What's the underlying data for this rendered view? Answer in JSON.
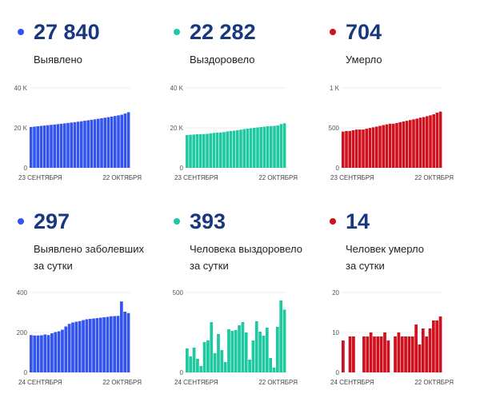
{
  "colors": {
    "cases": "#3355ee",
    "recovered": "#1ec8a0",
    "deaths": "#d0101c",
    "number": "#17387f"
  },
  "panels": [
    {
      "id": "cases-total",
      "value": "27 840",
      "label_lines": [
        "Выявлено"
      ],
      "color_key": "cases"
    },
    {
      "id": "recovered-total",
      "value": "22 282",
      "label_lines": [
        "Выздоровело"
      ],
      "color_key": "recovered"
    },
    {
      "id": "deaths-total",
      "value": "704",
      "label_lines": [
        "Умерло"
      ],
      "color_key": "deaths"
    },
    {
      "id": "cases-daily",
      "value": "297",
      "label_lines": [
        "Выявлено заболевших",
        "за сутки"
      ],
      "color_key": "cases"
    },
    {
      "id": "recovered-daily",
      "value": "393",
      "label_lines": [
        "Человека выздоровело",
        "за сутки"
      ],
      "color_key": "recovered"
    },
    {
      "id": "deaths-daily",
      "value": "14",
      "label_lines": [
        "Человек умерло",
        "за сутки"
      ],
      "color_key": "deaths"
    }
  ],
  "chart_data": [
    {
      "type": "bar",
      "title": "Выявлено",
      "x_start": "23 СЕНТЯБРЯ",
      "x_end": "22 ОКТЯБРЯ",
      "ylim": [
        0,
        40000
      ],
      "yticks": [
        0,
        20000,
        40000
      ],
      "ytick_labels": [
        "0",
        "20 K",
        "40 K"
      ],
      "grid": true,
      "values": [
        20450,
        20620,
        20800,
        20980,
        21160,
        21330,
        21520,
        21700,
        21880,
        22060,
        22260,
        22460,
        22660,
        22870,
        23090,
        23320,
        23560,
        23800,
        24040,
        24290,
        24550,
        24820,
        25090,
        25370,
        25660,
        25960,
        26270,
        26590,
        27160,
        27840
      ]
    },
    {
      "type": "bar",
      "title": "Выздоровело",
      "x_start": "23 СЕНТЯБРЯ",
      "x_end": "22 ОКТЯБРЯ",
      "ylim": [
        0,
        40000
      ],
      "yticks": [
        0,
        20000,
        40000
      ],
      "ytick_labels": [
        "0",
        "20 K",
        "40 K"
      ],
      "grid": true,
      "values": [
        16400,
        16550,
        16650,
        16800,
        16850,
        16900,
        17000,
        17250,
        17500,
        17600,
        17700,
        17900,
        18200,
        18400,
        18600,
        18800,
        19100,
        19400,
        19600,
        19800,
        20000,
        20200,
        20400,
        20600,
        20800,
        20900,
        21000,
        21200,
        21890,
        22282
      ]
    },
    {
      "type": "bar",
      "title": "Умерло",
      "x_start": "23 СЕНТЯБРЯ",
      "x_end": "22 ОКТЯБРЯ",
      "ylim": [
        0,
        1000
      ],
      "yticks": [
        0,
        500,
        1000
      ],
      "ytick_labels": [
        "0",
        "500",
        "1 K"
      ],
      "grid": true,
      "values": [
        453,
        461,
        461,
        470,
        479,
        479,
        479,
        489,
        498,
        507,
        516,
        525,
        535,
        544,
        552,
        552,
        561,
        571,
        580,
        589,
        598,
        607,
        616,
        628,
        635,
        646,
        657,
        670,
        690,
        704
      ]
    },
    {
      "type": "bar",
      "title": "Выявлено заболевших за сутки",
      "x_start": "24 СЕНТЯБРЯ",
      "x_end": "22 ОКТЯБРЯ",
      "ylim": [
        0,
        400
      ],
      "yticks": [
        0,
        200,
        400
      ],
      "ytick_labels": [
        "0",
        "200",
        "400"
      ],
      "grid": true,
      "values": [
        187,
        185,
        185,
        186,
        190,
        187,
        196,
        202,
        206,
        214,
        230,
        243,
        250,
        254,
        257,
        262,
        266,
        268,
        270,
        272,
        274,
        276,
        278,
        281,
        282,
        283,
        355,
        304,
        297
      ]
    },
    {
      "type": "bar",
      "title": "Человека выздоровело за сутки",
      "x_start": "24 СЕНТЯБРЯ",
      "x_end": "22 ОКТЯБРЯ",
      "ylim": [
        0,
        500
      ],
      "yticks": [
        0,
        500
      ],
      "ytick_labels": [
        "0",
        "500"
      ],
      "grid": true,
      "values": [
        150,
        100,
        155,
        85,
        40,
        190,
        200,
        315,
        120,
        240,
        140,
        65,
        270,
        260,
        265,
        295,
        315,
        250,
        80,
        200,
        320,
        255,
        230,
        280,
        90,
        30,
        285,
        450,
        393
      ]
    },
    {
      "type": "bar",
      "title": "Человек умерло за сутки",
      "x_start": "24 СЕНТЯБРЯ",
      "x_end": "22 ОКТЯБРЯ",
      "ylim": [
        0,
        20
      ],
      "yticks": [
        0,
        10,
        20
      ],
      "ytick_labels": [
        "0",
        "10",
        "20"
      ],
      "grid": true,
      "values": [
        8,
        0,
        9,
        9,
        0,
        0,
        9,
        9,
        10,
        9,
        9,
        9,
        10,
        8,
        0,
        9,
        10,
        9,
        9,
        9,
        9,
        12,
        7,
        11,
        9,
        11,
        13,
        13,
        14
      ]
    }
  ]
}
